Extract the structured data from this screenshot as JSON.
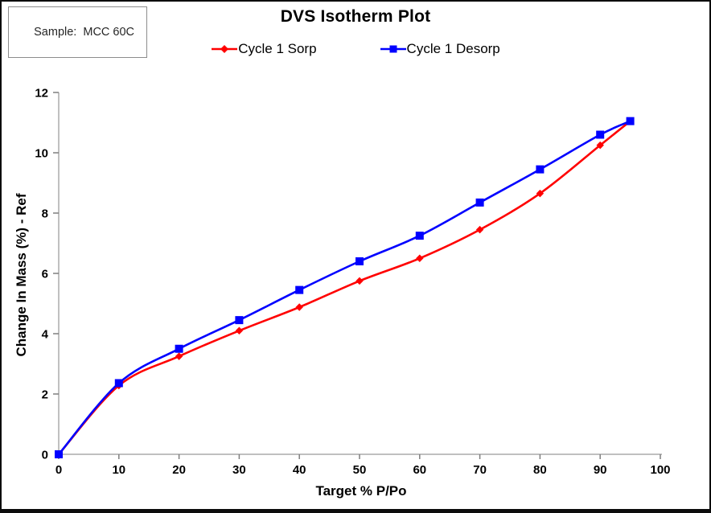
{
  "sample_box": {
    "label": "Sample:  MCC 60C"
  },
  "chart_data": {
    "type": "line",
    "title": "DVS Isotherm Plot",
    "xlabel": "Target % P/Po",
    "ylabel": "Change In Mass (%) - Ref",
    "xlim": [
      0,
      100
    ],
    "ylim": [
      0,
      12
    ],
    "x_ticks": [
      0,
      10,
      20,
      30,
      40,
      50,
      60,
      70,
      80,
      90,
      100
    ],
    "y_ticks": [
      0,
      2,
      4,
      6,
      8,
      10,
      12
    ],
    "grid": false,
    "legend_position": "top-center",
    "axis_color": "#ABABAB",
    "tick_color": "#7F7F7F",
    "line_style": "smooth",
    "series": [
      {
        "name": "Cycle 1 Sorp",
        "color": "#FF0000",
        "marker": "diamond",
        "x": [
          0,
          10,
          20,
          30,
          40,
          50,
          60,
          70,
          80,
          90,
          95
        ],
        "y": [
          0,
          2.28,
          3.25,
          4.1,
          4.88,
          5.75,
          6.5,
          7.45,
          8.65,
          10.25,
          11.05
        ]
      },
      {
        "name": "Cycle 1 Desorp",
        "color": "#0000FF",
        "marker": "square",
        "x": [
          0,
          10,
          20,
          30,
          40,
          50,
          60,
          70,
          80,
          90,
          95
        ],
        "y": [
          0,
          2.36,
          3.5,
          4.45,
          5.45,
          6.4,
          7.25,
          8.35,
          9.45,
          10.6,
          11.05
        ]
      }
    ]
  }
}
